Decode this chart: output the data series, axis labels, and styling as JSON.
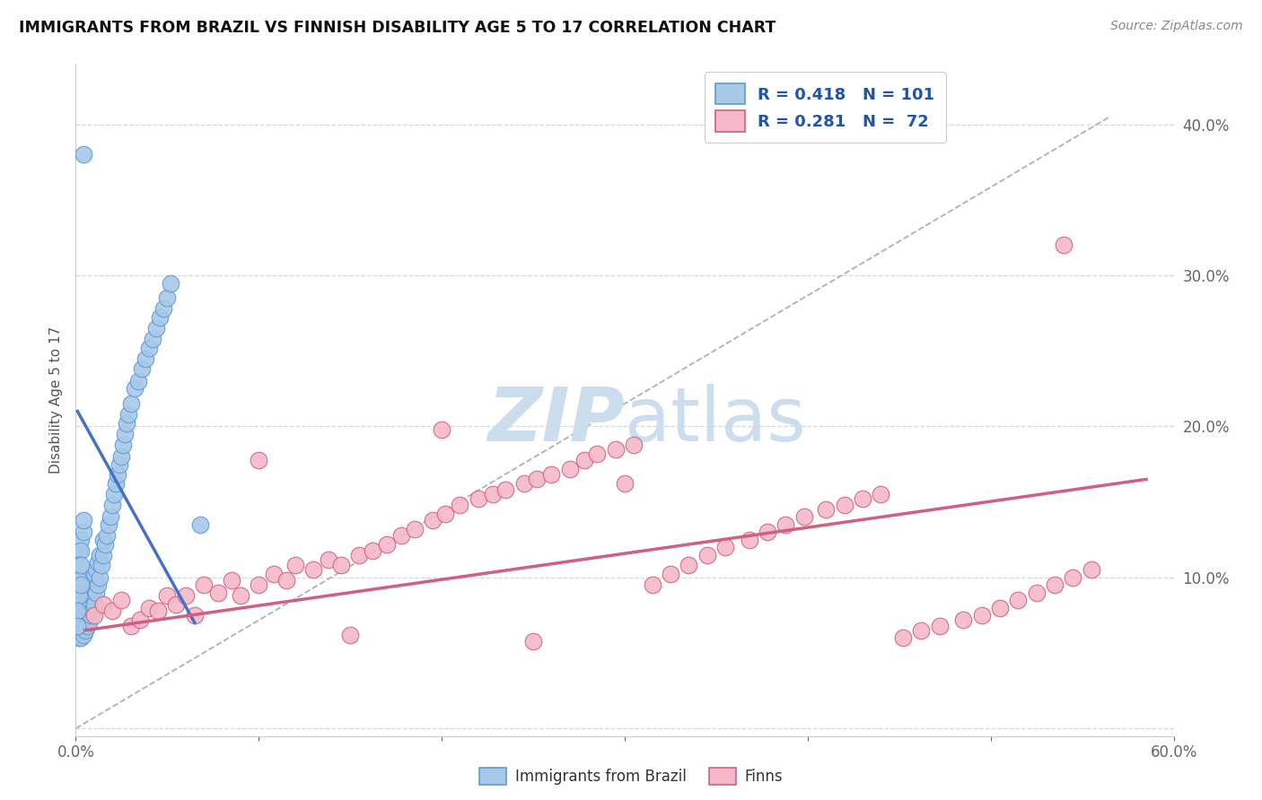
{
  "title": "IMMIGRANTS FROM BRAZIL VS FINNISH DISABILITY AGE 5 TO 17 CORRELATION CHART",
  "source": "Source: ZipAtlas.com",
  "ylabel": "Disability Age 5 to 17",
  "xlim": [
    0.0,
    0.6
  ],
  "ylim": [
    -0.005,
    0.44
  ],
  "brazil_color": "#a8c8e8",
  "brazil_edge": "#5b9bd5",
  "finn_color": "#f4b8c8",
  "finn_edge": "#d06080",
  "brazil_line_color": "#4472c4",
  "finn_line_color": "#d06080",
  "trendline_dashed_color": "#b0b0b0",
  "watermark_color": "#ccdded",
  "brazil_line": [
    0.001,
    0.07,
    0.065,
    0.21
  ],
  "finn_line": [
    0.005,
    0.065,
    0.585,
    0.165
  ],
  "dash_line": [
    0.0,
    0.0,
    0.565,
    0.405
  ],
  "brazil_points_x": [
    0.001,
    0.001,
    0.001,
    0.001,
    0.002,
    0.002,
    0.002,
    0.002,
    0.002,
    0.002,
    0.003,
    0.003,
    0.003,
    0.003,
    0.003,
    0.003,
    0.003,
    0.003,
    0.004,
    0.004,
    0.004,
    0.004,
    0.004,
    0.004,
    0.004,
    0.005,
    0.005,
    0.005,
    0.005,
    0.005,
    0.005,
    0.006,
    0.006,
    0.006,
    0.006,
    0.006,
    0.007,
    0.007,
    0.007,
    0.007,
    0.008,
    0.008,
    0.008,
    0.008,
    0.009,
    0.009,
    0.009,
    0.01,
    0.01,
    0.01,
    0.011,
    0.011,
    0.012,
    0.012,
    0.013,
    0.013,
    0.014,
    0.015,
    0.015,
    0.016,
    0.017,
    0.018,
    0.019,
    0.02,
    0.021,
    0.022,
    0.023,
    0.024,
    0.025,
    0.026,
    0.027,
    0.028,
    0.029,
    0.03,
    0.032,
    0.034,
    0.036,
    0.038,
    0.04,
    0.042,
    0.044,
    0.046,
    0.048,
    0.05,
    0.052,
    0.001,
    0.002,
    0.003,
    0.004,
    0.003,
    0.002,
    0.001,
    0.004,
    0.002,
    0.003,
    0.002,
    0.001,
    0.003,
    0.001,
    0.068,
    0.004
  ],
  "brazil_points_y": [
    0.068,
    0.072,
    0.075,
    0.08,
    0.06,
    0.065,
    0.07,
    0.075,
    0.08,
    0.085,
    0.06,
    0.065,
    0.068,
    0.072,
    0.078,
    0.082,
    0.088,
    0.092,
    0.062,
    0.066,
    0.07,
    0.075,
    0.082,
    0.088,
    0.095,
    0.065,
    0.07,
    0.075,
    0.082,
    0.088,
    0.095,
    0.068,
    0.072,
    0.08,
    0.088,
    0.095,
    0.07,
    0.078,
    0.086,
    0.095,
    0.075,
    0.082,
    0.092,
    0.1,
    0.078,
    0.088,
    0.098,
    0.082,
    0.092,
    0.102,
    0.09,
    0.105,
    0.095,
    0.11,
    0.1,
    0.115,
    0.108,
    0.115,
    0.125,
    0.122,
    0.128,
    0.135,
    0.14,
    0.148,
    0.155,
    0.162,
    0.168,
    0.175,
    0.18,
    0.188,
    0.195,
    0.202,
    0.208,
    0.215,
    0.225,
    0.23,
    0.238,
    0.245,
    0.252,
    0.258,
    0.265,
    0.272,
    0.278,
    0.285,
    0.295,
    0.112,
    0.118,
    0.125,
    0.13,
    0.118,
    0.108,
    0.098,
    0.138,
    0.098,
    0.108,
    0.088,
    0.078,
    0.095,
    0.068,
    0.135,
    0.38
  ],
  "finn_points_x": [
    0.01,
    0.015,
    0.02,
    0.025,
    0.03,
    0.035,
    0.04,
    0.045,
    0.05,
    0.055,
    0.06,
    0.065,
    0.07,
    0.078,
    0.085,
    0.09,
    0.1,
    0.108,
    0.115,
    0.12,
    0.13,
    0.138,
    0.145,
    0.155,
    0.162,
    0.17,
    0.178,
    0.185,
    0.195,
    0.202,
    0.21,
    0.22,
    0.228,
    0.235,
    0.245,
    0.252,
    0.26,
    0.27,
    0.278,
    0.285,
    0.295,
    0.305,
    0.315,
    0.325,
    0.335,
    0.345,
    0.355,
    0.368,
    0.378,
    0.388,
    0.398,
    0.41,
    0.42,
    0.43,
    0.44,
    0.452,
    0.462,
    0.472,
    0.485,
    0.495,
    0.505,
    0.515,
    0.525,
    0.535,
    0.545,
    0.555,
    0.54,
    0.1,
    0.2,
    0.3,
    0.25,
    0.15
  ],
  "finn_points_y": [
    0.075,
    0.082,
    0.078,
    0.085,
    0.068,
    0.072,
    0.08,
    0.078,
    0.088,
    0.082,
    0.088,
    0.075,
    0.095,
    0.09,
    0.098,
    0.088,
    0.095,
    0.102,
    0.098,
    0.108,
    0.105,
    0.112,
    0.108,
    0.115,
    0.118,
    0.122,
    0.128,
    0.132,
    0.138,
    0.142,
    0.148,
    0.152,
    0.155,
    0.158,
    0.162,
    0.165,
    0.168,
    0.172,
    0.178,
    0.182,
    0.185,
    0.188,
    0.095,
    0.102,
    0.108,
    0.115,
    0.12,
    0.125,
    0.13,
    0.135,
    0.14,
    0.145,
    0.148,
    0.152,
    0.155,
    0.06,
    0.065,
    0.068,
    0.072,
    0.075,
    0.08,
    0.085,
    0.09,
    0.095,
    0.1,
    0.105,
    0.32,
    0.178,
    0.198,
    0.162,
    0.058,
    0.062
  ]
}
